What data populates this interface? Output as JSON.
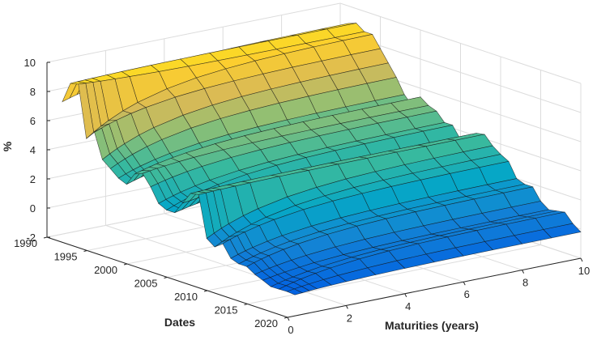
{
  "chart_data": {
    "type": "surface",
    "title": "",
    "xlabel": "Maturities (years)",
    "ylabel": "Dates",
    "zlabel": "%",
    "x_ticks": [
      "0",
      "2",
      "4",
      "6",
      "8",
      "10"
    ],
    "y_ticks": [
      "1990",
      "1995",
      "2000",
      "2005",
      "2010",
      "2015",
      "2020"
    ],
    "z_ticks": [
      "-2",
      "0",
      "2",
      "4",
      "6",
      "8",
      "10"
    ],
    "xlim": [
      0,
      10
    ],
    "ylim": [
      1990,
      2020
    ],
    "zlim": [
      -2,
      10
    ],
    "grid": true,
    "colormap": "parula",
    "colormap_stops": [
      "#352a87",
      "#0363e1",
      "#1485d4",
      "#06a7c6",
      "#38b99e",
      "#92bf73",
      "#d9ba56",
      "#fcce2e",
      "#f9fb0e"
    ],
    "maturities": [
      0.25,
      0.5,
      0.75,
      1,
      1.5,
      2,
      3,
      4,
      5,
      6,
      7,
      8,
      9,
      10
    ],
    "dates": [
      1991,
      1992,
      1993,
      1994,
      1995,
      1996,
      1997,
      1998,
      1999,
      2000,
      2001,
      2002,
      2003,
      2004,
      2005,
      2006,
      2007,
      2008,
      2009,
      2010,
      2011,
      2012,
      2013,
      2014,
      2015,
      2016,
      2017,
      2018,
      2019,
      2020
    ],
    "short_end_yield": [
      7.2,
      8.8,
      9.0,
      5.0,
      5.8,
      4.0,
      3.6,
      3.2,
      3.0,
      3.9,
      4.2,
      3.4,
      2.4,
      2.1,
      2.2,
      3.1,
      4.0,
      4.1,
      1.0,
      0.6,
      1.1,
      0.3,
      0.1,
      0.1,
      -0.2,
      -0.4,
      -0.7,
      -0.7,
      -0.6,
      -0.6
    ],
    "long_end_yield": [
      8.8,
      9.0,
      8.6,
      8.6,
      7.8,
      7.0,
      6.2,
      5.2,
      4.6,
      5.4,
      5.0,
      4.8,
      4.2,
      4.2,
      3.4,
      3.8,
      4.2,
      4.3,
      3.7,
      3.3,
      3.0,
      2.0,
      1.8,
      1.8,
      1.0,
      0.6,
      0.7,
      0.8,
      0.2,
      -0.2
    ]
  }
}
